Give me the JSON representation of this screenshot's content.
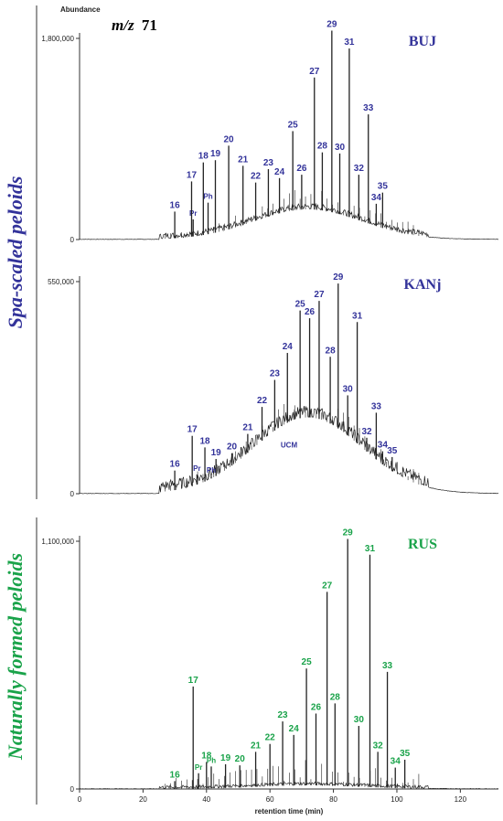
{
  "header": {
    "abundance_label": "Abundance",
    "mz_prefix": "m/z",
    "mz_value": "71"
  },
  "side_labels": {
    "top": "Spa-scaled peloids",
    "bottom": "Naturally formed peloids"
  },
  "colors": {
    "blue": "#33339a",
    "green": "#1aa34a",
    "trace": "#222222"
  },
  "chart_data": [
    {
      "type": "line",
      "title": "BUJ",
      "color": "#33339a",
      "ylim": [
        0,
        1800000
      ],
      "yticks": [
        {
          "value": 0,
          "label": "0"
        },
        {
          "value": 1800000,
          "label": "1,800,000"
        }
      ],
      "ucm": 0.15,
      "ucm_label": "",
      "peaks": [
        {
          "label": "16",
          "x": 30.0,
          "y": 250000
        },
        {
          "label": "Pr",
          "x": 35.8,
          "y": 180000
        },
        {
          "label": "17",
          "x": 35.3,
          "y": 520000
        },
        {
          "label": "Ph",
          "x": 40.5,
          "y": 330000
        },
        {
          "label": "18",
          "x": 39.0,
          "y": 690000
        },
        {
          "label": "19",
          "x": 42.8,
          "y": 710000
        },
        {
          "label": "20",
          "x": 47.0,
          "y": 840000
        },
        {
          "label": "21",
          "x": 51.5,
          "y": 660000
        },
        {
          "label": "22",
          "x": 55.5,
          "y": 510000
        },
        {
          "label": "23",
          "x": 59.5,
          "y": 630000
        },
        {
          "label": "24",
          "x": 63.0,
          "y": 550000
        },
        {
          "label": "25",
          "x": 67.2,
          "y": 970000
        },
        {
          "label": "26",
          "x": 70.0,
          "y": 580000
        },
        {
          "label": "27",
          "x": 74.0,
          "y": 1450000
        },
        {
          "label": "28",
          "x": 76.5,
          "y": 780000
        },
        {
          "label": "29",
          "x": 79.5,
          "y": 1870000
        },
        {
          "label": "30",
          "x": 82.0,
          "y": 770000
        },
        {
          "label": "31",
          "x": 85.0,
          "y": 1710000
        },
        {
          "label": "32",
          "x": 88.0,
          "y": 580000
        },
        {
          "label": "33",
          "x": 91.0,
          "y": 1120000
        },
        {
          "label": "34",
          "x": 93.5,
          "y": 320000
        },
        {
          "label": "35",
          "x": 95.5,
          "y": 420000
        }
      ]
    },
    {
      "type": "line",
      "title": "KANj",
      "color": "#33339a",
      "ylim": [
        0,
        550000
      ],
      "yticks": [
        {
          "value": 0,
          "label": "0"
        },
        {
          "value": 550000,
          "label": "550,000"
        }
      ],
      "ucm": 0.36,
      "ucm_label": "UCM",
      "peaks": [
        {
          "label": "16",
          "x": 30.0,
          "y": 60000
        },
        {
          "label": "Pr",
          "x": 37.0,
          "y": 50000
        },
        {
          "label": "17",
          "x": 35.5,
          "y": 150000
        },
        {
          "label": "Ph",
          "x": 41.5,
          "y": 45000
        },
        {
          "label": "18",
          "x": 39.5,
          "y": 120000
        },
        {
          "label": "19",
          "x": 43.0,
          "y": 90000
        },
        {
          "label": "20",
          "x": 48.0,
          "y": 105000
        },
        {
          "label": "21",
          "x": 53.0,
          "y": 155000
        },
        {
          "label": "22",
          "x": 57.5,
          "y": 225000
        },
        {
          "label": "23",
          "x": 61.5,
          "y": 295000
        },
        {
          "label": "24",
          "x": 65.5,
          "y": 365000
        },
        {
          "label": "25",
          "x": 69.5,
          "y": 475000
        },
        {
          "label": "26",
          "x": 72.5,
          "y": 455000
        },
        {
          "label": "27",
          "x": 75.5,
          "y": 500000
        },
        {
          "label": "28",
          "x": 79.0,
          "y": 355000
        },
        {
          "label": "29",
          "x": 81.5,
          "y": 545000
        },
        {
          "label": "30",
          "x": 84.5,
          "y": 255000
        },
        {
          "label": "31",
          "x": 87.5,
          "y": 445000
        },
        {
          "label": "32",
          "x": 90.5,
          "y": 145000
        },
        {
          "label": "33",
          "x": 93.5,
          "y": 210000
        },
        {
          "label": "34",
          "x": 95.5,
          "y": 110000
        },
        {
          "label": "35",
          "x": 98.5,
          "y": 95000
        }
      ]
    },
    {
      "type": "line",
      "title": "RUS",
      "color": "#1aa34a",
      "ylim": [
        0,
        1100000
      ],
      "yticks": [
        {
          "value": 0,
          "label": "0"
        },
        {
          "value": 1100000,
          "label": "1,100,000"
        }
      ],
      "ucm": 0.015,
      "ucm_label": "",
      "xlim": [
        0,
        132
      ],
      "xticks": [
        0,
        20,
        40,
        60,
        80,
        100,
        120
      ],
      "xlabel": "retention time (min)",
      "peaks": [
        {
          "label": "16",
          "x": 30.0,
          "y": 35000
        },
        {
          "label": "Pr",
          "x": 37.5,
          "y": 70000
        },
        {
          "label": "17",
          "x": 35.8,
          "y": 455000
        },
        {
          "label": "Ph",
          "x": 41.5,
          "y": 100000
        },
        {
          "label": "18",
          "x": 40.0,
          "y": 120000
        },
        {
          "label": "19",
          "x": 46.0,
          "y": 110000
        },
        {
          "label": "20",
          "x": 50.5,
          "y": 105000
        },
        {
          "label": "21",
          "x": 55.5,
          "y": 165000
        },
        {
          "label": "22",
          "x": 60.0,
          "y": 200000
        },
        {
          "label": "23",
          "x": 64.0,
          "y": 300000
        },
        {
          "label": "24",
          "x": 67.5,
          "y": 240000
        },
        {
          "label": "25",
          "x": 71.5,
          "y": 535000
        },
        {
          "label": "26",
          "x": 74.5,
          "y": 335000
        },
        {
          "label": "27",
          "x": 78.0,
          "y": 875000
        },
        {
          "label": "28",
          "x": 80.5,
          "y": 380000
        },
        {
          "label": "29",
          "x": 84.5,
          "y": 1110000
        },
        {
          "label": "30",
          "x": 88.0,
          "y": 280000
        },
        {
          "label": "31",
          "x": 91.5,
          "y": 1040000
        },
        {
          "label": "32",
          "x": 94.0,
          "y": 165000
        },
        {
          "label": "33",
          "x": 97.0,
          "y": 520000
        },
        {
          "label": "34",
          "x": 99.5,
          "y": 95000
        },
        {
          "label": "35",
          "x": 102.5,
          "y": 130000
        }
      ]
    }
  ]
}
